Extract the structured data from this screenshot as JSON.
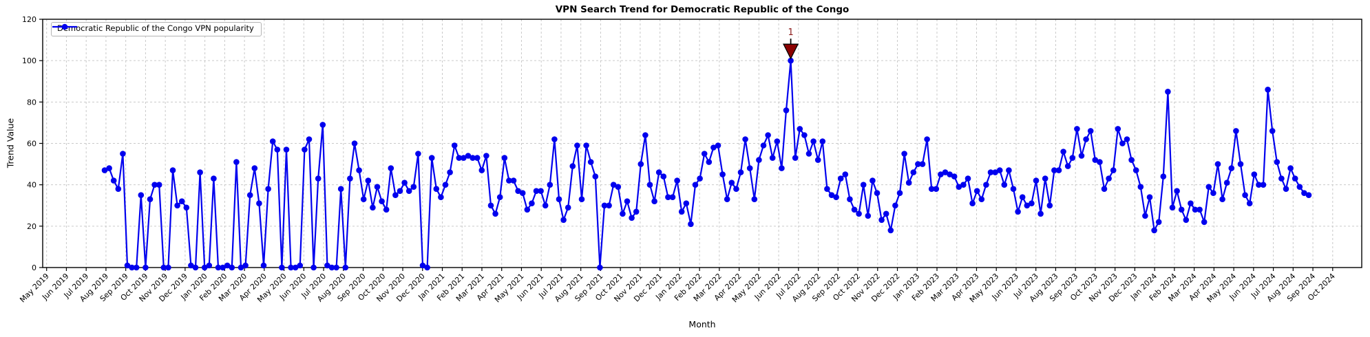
{
  "chart_data": {
    "type": "line",
    "title": "VPN Search Trend for Democratic Republic of the Congo",
    "xlabel": "Month",
    "ylabel": "Trend Value",
    "ylim": [
      0,
      120
    ],
    "yticks": [
      0,
      20,
      40,
      60,
      80,
      100,
      120
    ],
    "grid": true,
    "legend_position": "upper-left",
    "x_tick_labels": [
      "May 2019",
      "Jun 2019",
      "Jul 2019",
      "Aug 2019",
      "Sep 2019",
      "Oct 2019",
      "Nov 2019",
      "Dec 2019",
      "Jan 2020",
      "Feb 2020",
      "Mar 2020",
      "Apr 2020",
      "May 2020",
      "Jun 2020",
      "Jul 2020",
      "Aug 2020",
      "Sep 2020",
      "Oct 2020",
      "Nov 2020",
      "Dec 2020",
      "Jan 2021",
      "Feb 2021",
      "Mar 2021",
      "Apr 2021",
      "May 2021",
      "Jun 2021",
      "Jul 2021",
      "Aug 2021",
      "Sep 2021",
      "Oct 2021",
      "Nov 2021",
      "Dec 2021",
      "Jan 2022",
      "Feb 2022",
      "Mar 2022",
      "Apr 2022",
      "May 2022",
      "Jun 2022",
      "Jul 2022",
      "Aug 2022",
      "Sep 2022",
      "Oct 2022",
      "Nov 2022",
      "Dec 2022",
      "Jan 2023",
      "Feb 2023",
      "Mar 2023",
      "Apr 2023",
      "May 2023",
      "Jun 2023",
      "Jul 2023",
      "Aug 2023",
      "Sep 2023",
      "Oct 2023",
      "Nov 2023",
      "Dec 2023",
      "Jan 2024",
      "Feb 2024",
      "Mar 2024",
      "Apr 2024",
      "May 2024",
      "Jun 2024",
      "Jul 2024",
      "Aug 2024",
      "Sep 2024",
      "Oct 2024"
    ],
    "series": [
      {
        "name": "Democratic Republic of the Congo VPN popularity",
        "color": "#0000ee",
        "marker": "circle",
        "frequency": "weekly",
        "first_point_at": "Aug 2019",
        "values": [
          47,
          48,
          42,
          38,
          55,
          1,
          0,
          0,
          35,
          0,
          33,
          40,
          40,
          0,
          0,
          47,
          30,
          32,
          29,
          1,
          0,
          46,
          0,
          1,
          43,
          0,
          0,
          1,
          0,
          51,
          0,
          1,
          35,
          48,
          31,
          1,
          38,
          61,
          57,
          0,
          57,
          0,
          0,
          1,
          57,
          62,
          0,
          43,
          69,
          1,
          0,
          0,
          38,
          0,
          43,
          60,
          47,
          33,
          42,
          29,
          39,
          32,
          28,
          48,
          35,
          37,
          41,
          37,
          39,
          55,
          1,
          0,
          53,
          38,
          34,
          40,
          46,
          59,
          53,
          53,
          54,
          53,
          53,
          47,
          54,
          30,
          26,
          34,
          53,
          42,
          42,
          37,
          36,
          28,
          31,
          37,
          37,
          30,
          40,
          62,
          33,
          23,
          29,
          49,
          59,
          33,
          59,
          51,
          44,
          0,
          30,
          30,
          40,
          39,
          26,
          32,
          24,
          27,
          50,
          64,
          40,
          32,
          46,
          44,
          34,
          34,
          42,
          27,
          31,
          21,
          40,
          43,
          55,
          51,
          58,
          59,
          45,
          33,
          41,
          38,
          46,
          62,
          48,
          33,
          52,
          59,
          64,
          53,
          61,
          48,
          76,
          100,
          53,
          67,
          64,
          55,
          61,
          52,
          61,
          38,
          35,
          34,
          43,
          45,
          33,
          28,
          26,
          40,
          25,
          42,
          36,
          23,
          26,
          18,
          30,
          36,
          55,
          41,
          46,
          50,
          50,
          62,
          38,
          38,
          45,
          46,
          45,
          44,
          39,
          40,
          43,
          31,
          37,
          33,
          40,
          46,
          46,
          47,
          40,
          47,
          38,
          27,
          34,
          30,
          31,
          42,
          26,
          43,
          30,
          47,
          47,
          56,
          49,
          53,
          67,
          54,
          62,
          66,
          52,
          51,
          38,
          43,
          47,
          67,
          60,
          62,
          52,
          47,
          39,
          25,
          34,
          18,
          22,
          44,
          85,
          29,
          37,
          28,
          23,
          31,
          28,
          28,
          22,
          39,
          36,
          50,
          33,
          41,
          48,
          66,
          50,
          35,
          31,
          45,
          40,
          40,
          86,
          66,
          51,
          43,
          38,
          48,
          43,
          39,
          36,
          35
        ]
      }
    ],
    "annotation": {
      "label": "1",
      "point_index": 151,
      "at_value": 100,
      "marker": "down-triangle",
      "marker_color": "#8b0000",
      "text_color": "#8b1a1a"
    },
    "colors": {
      "line": "#0000ee",
      "grid": "#c9c9c9",
      "spine": "#000000",
      "background": "#ffffff"
    }
  }
}
